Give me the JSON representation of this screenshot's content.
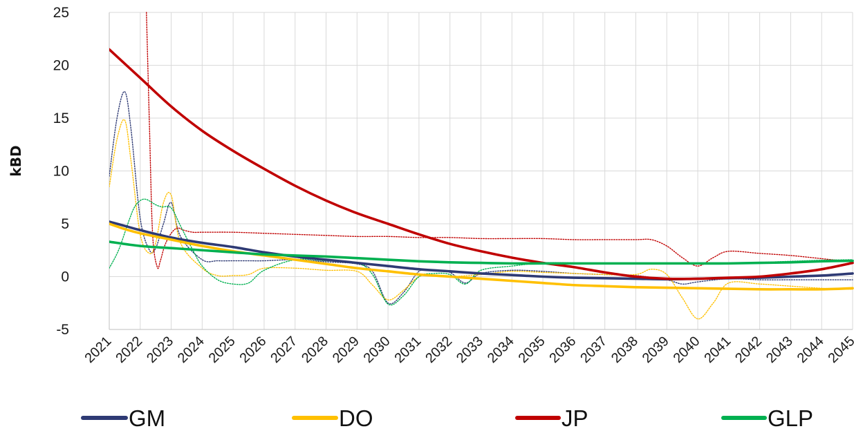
{
  "chart_data": {
    "type": "line",
    "title": "",
    "xlabel": "",
    "ylabel": "kBD",
    "ylim": [
      -5,
      25
    ],
    "yticks": [
      "25",
      "20",
      "15",
      "10",
      "5",
      "0",
      "-5"
    ],
    "categories": [
      "2021",
      "2022",
      "2023",
      "2024",
      "2025",
      "2026",
      "2027",
      "2028",
      "2029",
      "2030",
      "2031",
      "2032",
      "2033",
      "2034",
      "2035",
      "2036",
      "2037",
      "2038",
      "2039",
      "2040",
      "2041",
      "2042",
      "2043",
      "2044",
      "2045"
    ],
    "grid": "both",
    "legend_position": "bottom",
    "series": [
      {
        "name": "GM",
        "color": "#2e3a74",
        "style": "solid",
        "x": [
          2021.0,
          2021.5,
          2022.0,
          2023.0,
          2024.0,
          2025.0,
          2026.0,
          2027.0,
          2028.0,
          2029.0,
          2030.0,
          2031.0,
          2032.0,
          2033.0,
          2034.0,
          2035.0,
          2036.0,
          2037.0,
          2038.0,
          2039.0,
          2040.0,
          2041.0,
          2042.0,
          2043.0,
          2044.0,
          2045.0
        ],
        "y": [
          5.2,
          4.8,
          4.4,
          3.7,
          3.2,
          2.8,
          2.3,
          1.9,
          1.6,
          1.3,
          1.0,
          0.7,
          0.5,
          0.3,
          0.15,
          0.0,
          -0.1,
          -0.15,
          -0.2,
          -0.25,
          -0.2,
          -0.15,
          -0.1,
          0.0,
          0.1,
          0.3
        ]
      },
      {
        "name": "DO",
        "color": "#ffc000",
        "style": "solid",
        "x": [
          2021.0,
          2021.5,
          2022.0,
          2023.0,
          2024.0,
          2025.0,
          2026.0,
          2027.0,
          2028.0,
          2029.0,
          2030.0,
          2031.0,
          2032.0,
          2033.0,
          2034.0,
          2035.0,
          2036.0,
          2037.0,
          2038.0,
          2039.0,
          2040.0,
          2041.0,
          2042.0,
          2043.0,
          2044.0,
          2045.0
        ],
        "y": [
          5.0,
          4.5,
          4.1,
          3.5,
          2.9,
          2.4,
          2.0,
          1.6,
          1.2,
          0.8,
          0.5,
          0.2,
          0.0,
          -0.2,
          -0.4,
          -0.6,
          -0.8,
          -0.9,
          -1.0,
          -1.05,
          -1.1,
          -1.15,
          -1.2,
          -1.2,
          -1.2,
          -1.1
        ]
      },
      {
        "name": "JP",
        "color": "#c00000",
        "style": "solid",
        "x": [
          2021.0,
          2022.0,
          2023.0,
          2024.0,
          2025.0,
          2026.0,
          2027.0,
          2028.0,
          2029.0,
          2030.0,
          2031.0,
          2032.0,
          2033.0,
          2034.0,
          2035.0,
          2036.0,
          2037.0,
          2038.0,
          2039.0,
          2040.0,
          2041.0,
          2042.0,
          2043.0,
          2044.0,
          2045.0
        ],
        "y": [
          21.5,
          18.8,
          16.1,
          13.8,
          11.9,
          10.2,
          8.6,
          7.2,
          6.0,
          5.0,
          4.0,
          3.1,
          2.4,
          1.8,
          1.3,
          0.9,
          0.4,
          0.0,
          -0.2,
          -0.2,
          -0.1,
          0.0,
          0.3,
          0.7,
          1.3
        ]
      },
      {
        "name": "GLP",
        "color": "#00b050",
        "style": "solid",
        "x": [
          2021.0,
          2022.0,
          2023.0,
          2024.0,
          2025.0,
          2026.0,
          2027.0,
          2028.0,
          2029.0,
          2030.0,
          2031.0,
          2032.0,
          2033.0,
          2034.0,
          2035.0,
          2036.0,
          2037.0,
          2038.0,
          2039.0,
          2040.0,
          2041.0,
          2042.0,
          2043.0,
          2044.0,
          2045.0
        ],
        "y": [
          3.3,
          2.9,
          2.7,
          2.5,
          2.3,
          2.1,
          2.0,
          1.9,
          1.75,
          1.6,
          1.45,
          1.35,
          1.3,
          1.25,
          1.25,
          1.25,
          1.25,
          1.25,
          1.25,
          1.25,
          1.25,
          1.3,
          1.35,
          1.45,
          1.5
        ]
      },
      {
        "color": "#2e3a74",
        "style": "dotted",
        "x": [
          2021.0,
          2021.25,
          2021.5,
          2021.7,
          2022.0,
          2022.3,
          2022.5,
          2022.75,
          2023.0,
          2023.3,
          2024.0,
          2024.5,
          2025.0,
          2025.5,
          2026.0,
          2027.0,
          2028.0,
          2029.0,
          2029.5,
          2030.0,
          2030.5,
          2031.0,
          2031.5,
          2032.0,
          2032.5,
          2033.0,
          2034.0,
          2035.0,
          2036.0,
          2037.0,
          2038.0,
          2039.0,
          2039.5,
          2040.0,
          2041.0,
          2042.0,
          2043.0,
          2044.0,
          2045.0
        ],
        "y": [
          9.5,
          15.0,
          17.5,
          14.0,
          5.5,
          2.5,
          2.7,
          5.0,
          7.0,
          3.8,
          1.6,
          1.5,
          1.5,
          1.5,
          1.5,
          1.6,
          1.4,
          1.2,
          0.5,
          -2.5,
          -1.5,
          0.5,
          0.6,
          0.4,
          -0.6,
          0.3,
          0.6,
          0.5,
          0.3,
          0.2,
          0.1,
          -0.3,
          -0.7,
          -0.5,
          -0.2,
          -0.3,
          -0.3,
          -0.3,
          -0.3
        ]
      },
      {
        "color": "#ffc000",
        "style": "dotted",
        "x": [
          2021.0,
          2021.25,
          2021.5,
          2021.7,
          2022.0,
          2022.3,
          2022.5,
          2022.75,
          2023.0,
          2023.3,
          2024.0,
          2024.5,
          2025.0,
          2025.5,
          2026.0,
          2027.0,
          2028.0,
          2029.0,
          2029.5,
          2030.0,
          2030.5,
          2031.0,
          2031.5,
          2032.0,
          2033.0,
          2034.0,
          2035.0,
          2036.0,
          2037.0,
          2038.0,
          2038.5,
          2039.0,
          2039.5,
          2040.0,
          2040.5,
          2041.0,
          2042.0,
          2043.0,
          2044.0,
          2045.0
        ],
        "y": [
          8.5,
          13.0,
          14.8,
          11.0,
          4.0,
          2.2,
          3.2,
          7.0,
          7.7,
          3.2,
          0.8,
          0.1,
          0.1,
          0.2,
          0.8,
          0.8,
          0.6,
          0.5,
          -0.8,
          -2.2,
          -1.3,
          0.0,
          0.1,
          0.0,
          0.2,
          0.5,
          0.4,
          0.3,
          0.2,
          0.2,
          0.7,
          0.2,
          -2.0,
          -4.0,
          -2.5,
          -0.6,
          -0.7,
          -0.9,
          -1.1,
          -1.2
        ]
      },
      {
        "color": "#c00000",
        "style": "dotted",
        "x": [
          2022.2,
          2022.3,
          2022.4,
          2022.55,
          2022.65,
          2022.8,
          2023.0,
          2023.2,
          2023.4,
          2023.7,
          2024.0,
          2025.0,
          2026.0,
          2027.0,
          2028.0,
          2029.0,
          2030.0,
          2031.0,
          2032.0,
          2033.0,
          2034.0,
          2035.0,
          2036.0,
          2037.0,
          2038.0,
          2038.5,
          2039.0,
          2039.5,
          2040.0,
          2040.5,
          2041.0,
          2042.0,
          2043.0,
          2044.0,
          2045.0
        ],
        "y": [
          25.0,
          14.0,
          4.0,
          0.9,
          1.5,
          3.0,
          4.1,
          4.6,
          4.4,
          4.2,
          4.2,
          4.2,
          4.1,
          4.0,
          3.9,
          3.8,
          3.8,
          3.7,
          3.7,
          3.6,
          3.6,
          3.6,
          3.5,
          3.5,
          3.5,
          3.5,
          2.9,
          1.8,
          1.0,
          1.8,
          2.4,
          2.2,
          2.0,
          1.7,
          1.4
        ]
      },
      {
        "color": "#00b050",
        "style": "dotted",
        "x": [
          2021.0,
          2021.3,
          2021.6,
          2021.8,
          2022.0,
          2022.2,
          2022.5,
          2022.7,
          2023.0,
          2023.3,
          2023.7,
          2024.0,
          2024.5,
          2025.0,
          2025.5,
          2026.0,
          2027.0,
          2028.0,
          2029.0,
          2029.5,
          2030.0,
          2030.5,
          2031.0,
          2031.5,
          2032.0,
          2032.5,
          2033.0,
          2034.0,
          2035.0,
          2036.0,
          2037.0,
          2038.0,
          2039.0,
          2040.0,
          2041.0,
          2042.0,
          2043.0,
          2044.0,
          2045.0
        ],
        "y": [
          0.8,
          2.5,
          5.0,
          6.5,
          7.2,
          7.3,
          6.8,
          6.6,
          6.5,
          4.8,
          2.5,
          1.0,
          -0.3,
          -0.7,
          -0.6,
          0.6,
          1.6,
          1.5,
          1.3,
          0.2,
          -2.6,
          -1.8,
          0.0,
          0.3,
          0.2,
          -0.7,
          0.6,
          1.0,
          1.3,
          1.3,
          1.25,
          1.25,
          1.25,
          1.25,
          1.3,
          1.35,
          1.45,
          1.55,
          1.6
        ]
      }
    ]
  }
}
